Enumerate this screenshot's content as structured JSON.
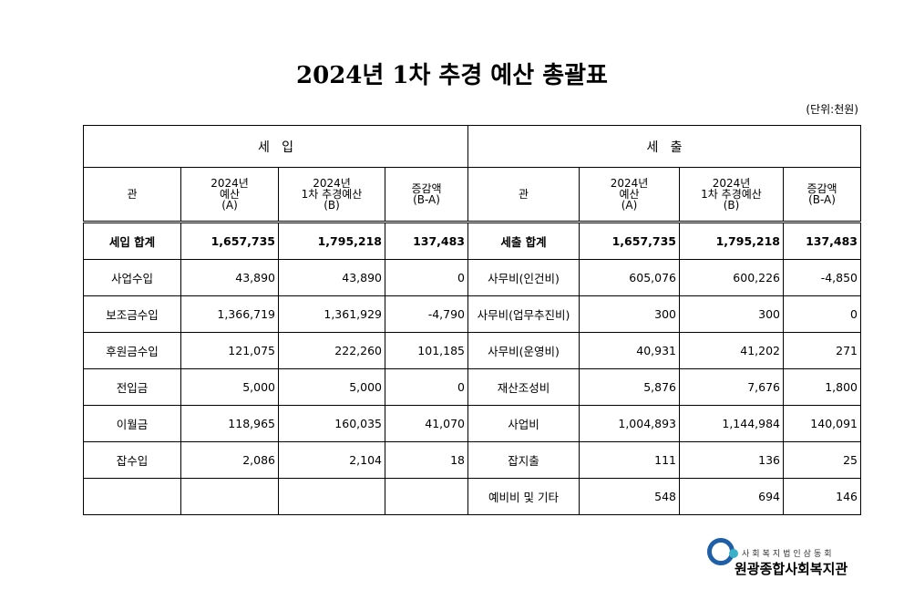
{
  "title": "2024년 1차 추경 예산 총괄표",
  "unit": "(단위:천원)",
  "income_header": "세   입",
  "expense_header": "세   출",
  "col_headers": {
    "gwan": "관",
    "budget": [
      "2024년",
      "예산",
      "(A)"
    ],
    "revised": [
      "2024년",
      "1차 추경예산",
      "(B)"
    ],
    "diff": [
      "증감액",
      "(B-A)"
    ]
  },
  "rows": [
    {
      "income": [
        "세입 합계",
        "1,657,735",
        "1,795,218",
        "137,483"
      ],
      "expense": [
        "세출 합계",
        "1,657,735",
        "1,795,218",
        "137,483"
      ]
    },
    {
      "income": [
        "사업수입",
        "43,890",
        "43,890",
        "0"
      ],
      "expense": [
        "사무비(인건비)",
        "605,076",
        "600,226",
        "-4,850"
      ]
    },
    {
      "income": [
        "보조금수입",
        "1,366,719",
        "1,361,929",
        "-4,790"
      ],
      "expense": [
        "사무비(업무추진비)",
        "300",
        "300",
        "0"
      ]
    },
    {
      "income": [
        "후원금수입",
        "121,075",
        "222,260",
        "101,185"
      ],
      "expense": [
        "사무비(운영비)",
        "40,931",
        "41,202",
        "271"
      ]
    },
    {
      "income": [
        "전입금",
        "5,000",
        "5,000",
        "0"
      ],
      "expense": [
        "재산조성비",
        "5,876",
        "7,676",
        "1,800"
      ]
    },
    {
      "income": [
        "이월금",
        "118,965",
        "160,035",
        "41,070"
      ],
      "expense": [
        "사업비",
        "1,004,893",
        "1,144,984",
        "140,091"
      ]
    },
    {
      "income": [
        "잡수입",
        "2,086",
        "2,104",
        "18"
      ],
      "expense": [
        "잡지출",
        "111",
        "136",
        "25"
      ]
    },
    {
      "income": [
        "",
        "",
        "",
        ""
      ],
      "expense": [
        "예비비 및 기타",
        "548",
        "694",
        "146"
      ]
    }
  ],
  "logo": {
    "subtitle": "사회복지법인삼동회",
    "name": "원광종합사회복지관",
    "colors": {
      "ring": "#1f5fa8",
      "dot": "#3bb0c9"
    }
  }
}
